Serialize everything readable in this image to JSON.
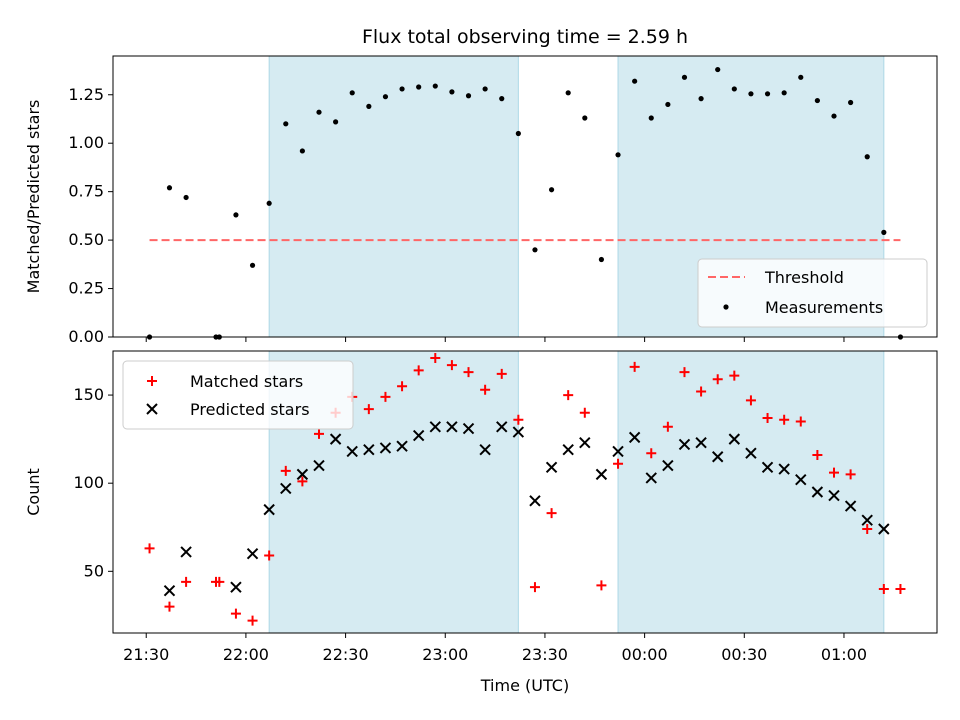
{
  "title": "Flux total observing time = 2.59 h",
  "xlabel": "Time (UTC)",
  "x_ticks": [
    "21:30",
    "22:00",
    "22:30",
    "23:00",
    "23:30",
    "00:00",
    "00:30",
    "01:00"
  ],
  "x_tick_minutes": [
    1290,
    1320,
    1350,
    1380,
    1410,
    1440,
    1470,
    1500
  ],
  "x_range_minutes": [
    1280,
    1528
  ],
  "colors": {
    "shade": "#add8e6",
    "threshold": "#ff6666",
    "matched": "#ff0000",
    "predicted": "#000000",
    "measure": "#000000"
  },
  "chart_data": [
    {
      "type": "scatter",
      "ylabel": "Matched/Predicted stars",
      "ylim": [
        0,
        1.45
      ],
      "y_ticks": [
        "0.00",
        "0.25",
        "0.50",
        "0.75",
        "1.00",
        "1.25"
      ],
      "y_tick_values": [
        0,
        0.25,
        0.5,
        0.75,
        1.0,
        1.25
      ],
      "shaded_intervals_minutes": [
        [
          1327,
          1402
        ],
        [
          1432,
          1512
        ]
      ],
      "threshold": {
        "name": "Threshold",
        "value": 0.5,
        "x_range_minutes": [
          1291,
          1517
        ]
      },
      "legend_placement": "lower-right",
      "series": [
        {
          "name": "Measurements",
          "x_minutes": [
            1291,
            1297,
            1302,
            1311,
            1312,
            1317,
            1322,
            1327,
            1332,
            1337,
            1342,
            1347,
            1352,
            1357,
            1362,
            1367,
            1372,
            1377,
            1382,
            1387,
            1392,
            1397,
            1402,
            1407,
            1412,
            1417,
            1422,
            1427,
            1432,
            1437,
            1442,
            1447,
            1452,
            1457,
            1462,
            1467,
            1472,
            1477,
            1482,
            1487,
            1492,
            1497,
            1502,
            1507,
            1512,
            1517
          ],
          "y": [
            0.0,
            0.77,
            0.72,
            0.0,
            0.0,
            0.63,
            0.37,
            0.69,
            1.1,
            0.96,
            1.16,
            1.11,
            1.26,
            1.19,
            1.24,
            1.28,
            1.29,
            1.295,
            1.265,
            1.245,
            1.28,
            1.23,
            1.05,
            0.45,
            0.76,
            1.26,
            1.13,
            0.4,
            0.94,
            1.32,
            1.13,
            1.2,
            1.34,
            1.23,
            1.38,
            1.28,
            1.255,
            1.255,
            1.26,
            1.34,
            1.22,
            1.14,
            1.21,
            0.93,
            0.54,
            0.0
          ]
        }
      ]
    },
    {
      "type": "scatter",
      "ylabel": "Count",
      "ylim": [
        15,
        175
      ],
      "y_ticks": [
        "50",
        "100",
        "150"
      ],
      "y_tick_values": [
        50,
        100,
        150
      ],
      "shaded_intervals_minutes": [
        [
          1327,
          1402
        ],
        [
          1432,
          1512
        ]
      ],
      "legend_placement": "upper-left",
      "series": [
        {
          "name": "Matched stars",
          "marker": "plus",
          "x_minutes": [
            1291,
            1297,
            1302,
            1311,
            1312,
            1317,
            1322,
            1327,
            1332,
            1337,
            1342,
            1347,
            1352,
            1357,
            1362,
            1367,
            1372,
            1377,
            1382,
            1387,
            1392,
            1397,
            1402,
            1407,
            1412,
            1417,
            1422,
            1427,
            1432,
            1437,
            1442,
            1447,
            1452,
            1457,
            1462,
            1467,
            1472,
            1477,
            1482,
            1487,
            1492,
            1497,
            1502,
            1507,
            1512,
            1517
          ],
          "y": [
            63,
            30,
            44,
            44,
            44,
            26,
            22,
            59,
            107,
            101,
            128,
            140,
            149,
            142,
            149,
            155,
            164,
            171,
            167,
            163,
            153,
            162,
            136,
            41,
            83,
            150,
            140,
            42,
            111,
            166,
            117,
            132,
            163,
            152,
            159,
            161,
            147,
            137,
            136,
            135,
            116,
            106,
            105,
            74,
            40,
            40
          ]
        },
        {
          "name": "Predicted stars",
          "marker": "x",
          "x_minutes": [
            1297,
            1302,
            1317,
            1322,
            1327,
            1332,
            1337,
            1342,
            1347,
            1352,
            1357,
            1362,
            1367,
            1372,
            1377,
            1382,
            1387,
            1392,
            1397,
            1402,
            1407,
            1412,
            1417,
            1422,
            1427,
            1432,
            1437,
            1442,
            1447,
            1452,
            1457,
            1462,
            1467,
            1472,
            1477,
            1482,
            1487,
            1492,
            1497,
            1502,
            1507,
            1512
          ],
          "y": [
            39,
            61,
            41,
            60,
            85,
            97,
            105,
            110,
            125,
            118,
            119,
            120,
            121,
            127,
            132,
            132,
            131,
            119,
            132,
            129,
            90,
            109,
            119,
            123,
            105,
            118,
            126,
            103,
            110,
            122,
            123,
            115,
            125,
            117,
            109,
            108,
            102,
            95,
            93,
            87,
            79,
            74
          ]
        }
      ]
    }
  ]
}
